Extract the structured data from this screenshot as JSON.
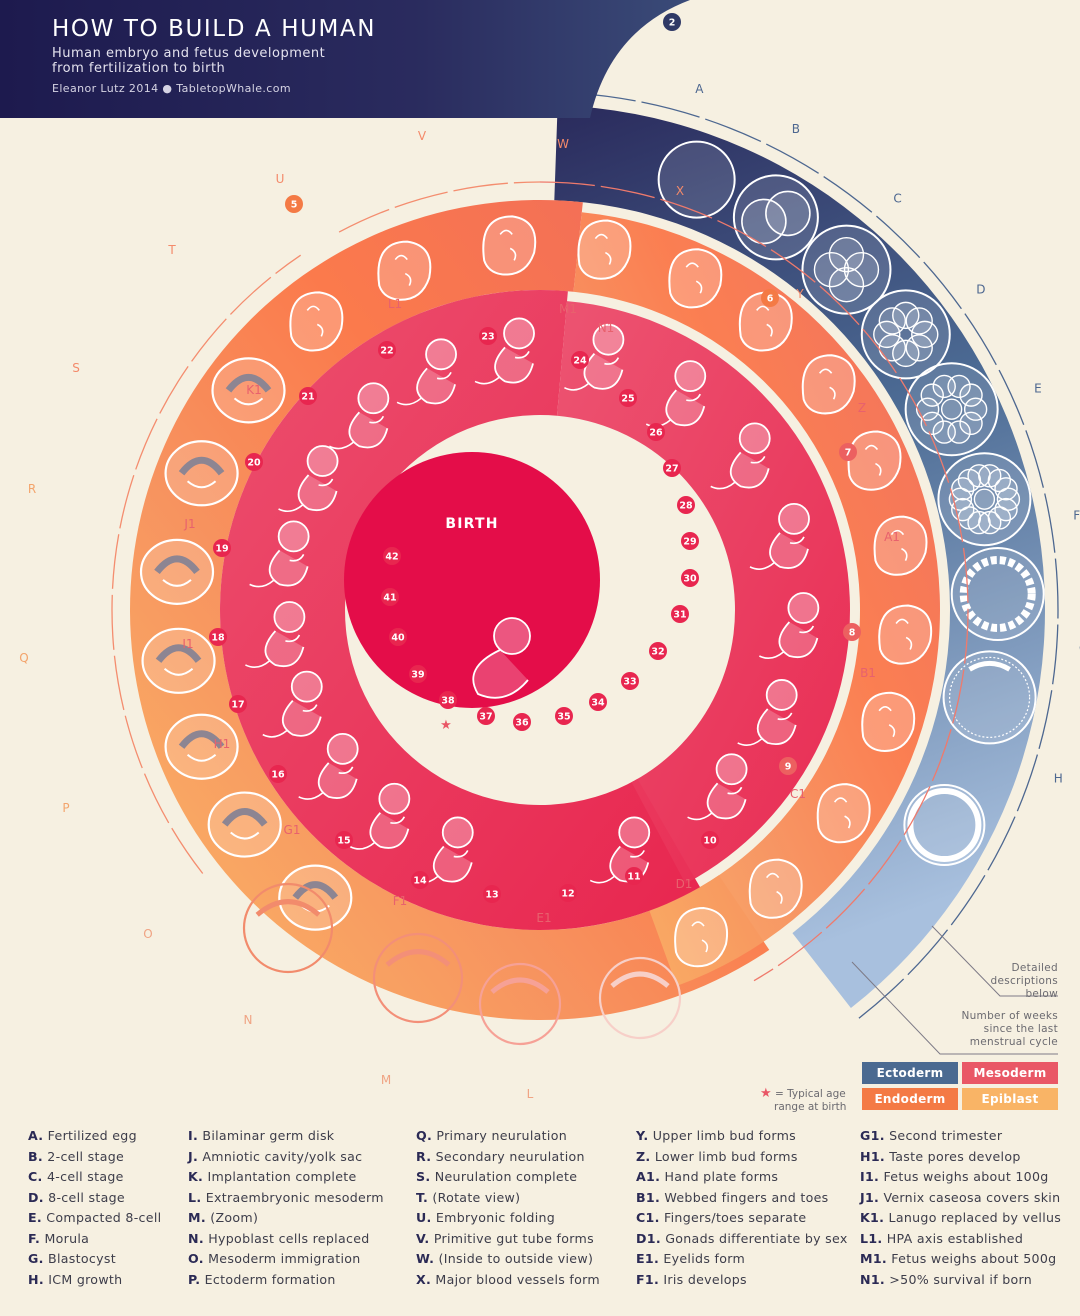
{
  "title": {
    "main": "HOW TO BUILD A HUMAN",
    "subtitle_1": "Human embryo and fetus development",
    "subtitle_2": "from fertilization to birth",
    "credit": "Eleanor Lutz 2014 ● TabletopWhale.com"
  },
  "center_label": "BIRTH",
  "colors": {
    "title_bg": "#1f1b4f",
    "ectoderm": "#4b6a91",
    "mesoderm": "#e95766",
    "endoderm": "#f47a45",
    "epiblast": "#f9b466",
    "center": "#e3104a",
    "background": "#f6f0e1"
  },
  "outer_ring_stages": [
    "A",
    "B",
    "C",
    "D",
    "E",
    "F",
    "G",
    "H"
  ],
  "outer_bottom_stages": [
    "L",
    "M",
    "N",
    "O"
  ],
  "middle_ring_stages": [
    "P",
    "Q",
    "R",
    "S",
    "T",
    "U",
    "V",
    "W",
    "X",
    "Y",
    "Z",
    "A1",
    "B1",
    "C1",
    "D1",
    "E1",
    "F1",
    "G1",
    "H1",
    "I1",
    "J1",
    "K1",
    "L1",
    "M1",
    "N1"
  ],
  "week_marks_outer": [
    "2"
  ],
  "week_marks_middle": [
    "5",
    "6",
    "7",
    "8",
    "9",
    "10",
    "11",
    "12",
    "13",
    "14",
    "15",
    "16",
    "17",
    "18",
    "19",
    "20",
    "21",
    "22",
    "23",
    "24",
    "25",
    "26",
    "27",
    "28",
    "29",
    "30",
    "31",
    "32",
    "33",
    "34",
    "35",
    "36",
    "37",
    "38",
    "39",
    "40",
    "41",
    "42"
  ],
  "notes": {
    "detailed": [
      "Detailed",
      "descriptions",
      "below"
    ],
    "weeks": [
      "Number of weeks",
      "since the last",
      "menstrual cycle"
    ],
    "star": [
      "= Typical age",
      "range at birth"
    ]
  },
  "legend": [
    {
      "label": "Ectoderm",
      "color": "#4b6a91"
    },
    {
      "label": "Mesoderm",
      "color": "#e95766"
    },
    {
      "label": "Endoderm",
      "color": "#f47a45"
    },
    {
      "label": "Epiblast",
      "color": "#f9b466"
    }
  ],
  "key_columns": [
    [
      {
        "k": "A.",
        "t": "Fertilized egg"
      },
      {
        "k": "B.",
        "t": "2-cell stage"
      },
      {
        "k": "C.",
        "t": "4-cell stage"
      },
      {
        "k": "D.",
        "t": "8-cell stage"
      },
      {
        "k": "E.",
        "t": "Compacted 8-cell"
      },
      {
        "k": "F.",
        "t": "Morula"
      },
      {
        "k": "G.",
        "t": "Blastocyst"
      },
      {
        "k": "H.",
        "t": "ICM growth"
      }
    ],
    [
      {
        "k": "I.",
        "t": " Bilaminar germ disk"
      },
      {
        "k": "J.",
        "t": "Amniotic cavity/yolk sac"
      },
      {
        "k": "K.",
        "t": "Implantation complete"
      },
      {
        "k": "L.",
        "t": "Extraembryonic mesoderm"
      },
      {
        "k": "M.",
        "t": "(Zoom)"
      },
      {
        "k": "N.",
        "t": "Hypoblast cells replaced"
      },
      {
        "k": "O.",
        "t": "Mesoderm immigration"
      },
      {
        "k": "P.",
        "t": "Ectoderm formation"
      }
    ],
    [
      {
        "k": "Q.",
        "t": "Primary neurulation"
      },
      {
        "k": "R.",
        "t": "Secondary neurulation"
      },
      {
        "k": "S.",
        "t": "Neurulation complete"
      },
      {
        "k": "T.",
        "t": "(Rotate view)"
      },
      {
        "k": "U.",
        "t": "Embryonic folding"
      },
      {
        "k": "V.",
        "t": "Primitive gut tube forms"
      },
      {
        "k": "W.",
        "t": "(Inside to outside view)"
      },
      {
        "k": "X.",
        "t": "Major blood vessels form"
      }
    ],
    [
      {
        "k": "Y.",
        "t": "Upper limb bud forms"
      },
      {
        "k": "Z.",
        "t": "Lower limb bud forms"
      },
      {
        "k": "A1.",
        "t": "Hand plate forms"
      },
      {
        "k": "B1.",
        "t": "Webbed fingers and toes"
      },
      {
        "k": "C1.",
        "t": "Fingers/toes separate"
      },
      {
        "k": "D1.",
        "t": "Gonads differentiate by sex"
      },
      {
        "k": "E1.",
        "t": "Eyelids form"
      },
      {
        "k": "F1.",
        "t": "Iris develops"
      }
    ],
    [
      {
        "k": "G1.",
        "t": "Second trimester"
      },
      {
        "k": "H1.",
        "t": "Taste pores develop"
      },
      {
        "k": "I1.",
        "t": "Fetus weighs about 100g"
      },
      {
        "k": "J1.",
        "t": "Vernix caseosa covers skin"
      },
      {
        "k": "K1.",
        "t": "Lanugo replaced by vellus"
      },
      {
        "k": "L1.",
        "t": "HPA axis established"
      },
      {
        "k": "M1.",
        "t": "Fetus weighs about 500g"
      },
      {
        "k": "N1.",
        "t": ">50% survival if born"
      }
    ]
  ]
}
